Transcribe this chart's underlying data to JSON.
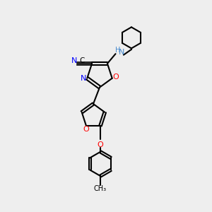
{
  "bg_color": "#eeeeee",
  "atom_color_N": "#0000ff",
  "atom_color_O": "#ff0000",
  "atom_color_C": "#000000",
  "atom_color_NH": "#4488cc",
  "line_color": "#000000",
  "figsize": [
    3.0,
    3.0
  ],
  "dpi": 100,
  "xlim": [
    0,
    10
  ],
  "ylim": [
    0,
    10
  ]
}
